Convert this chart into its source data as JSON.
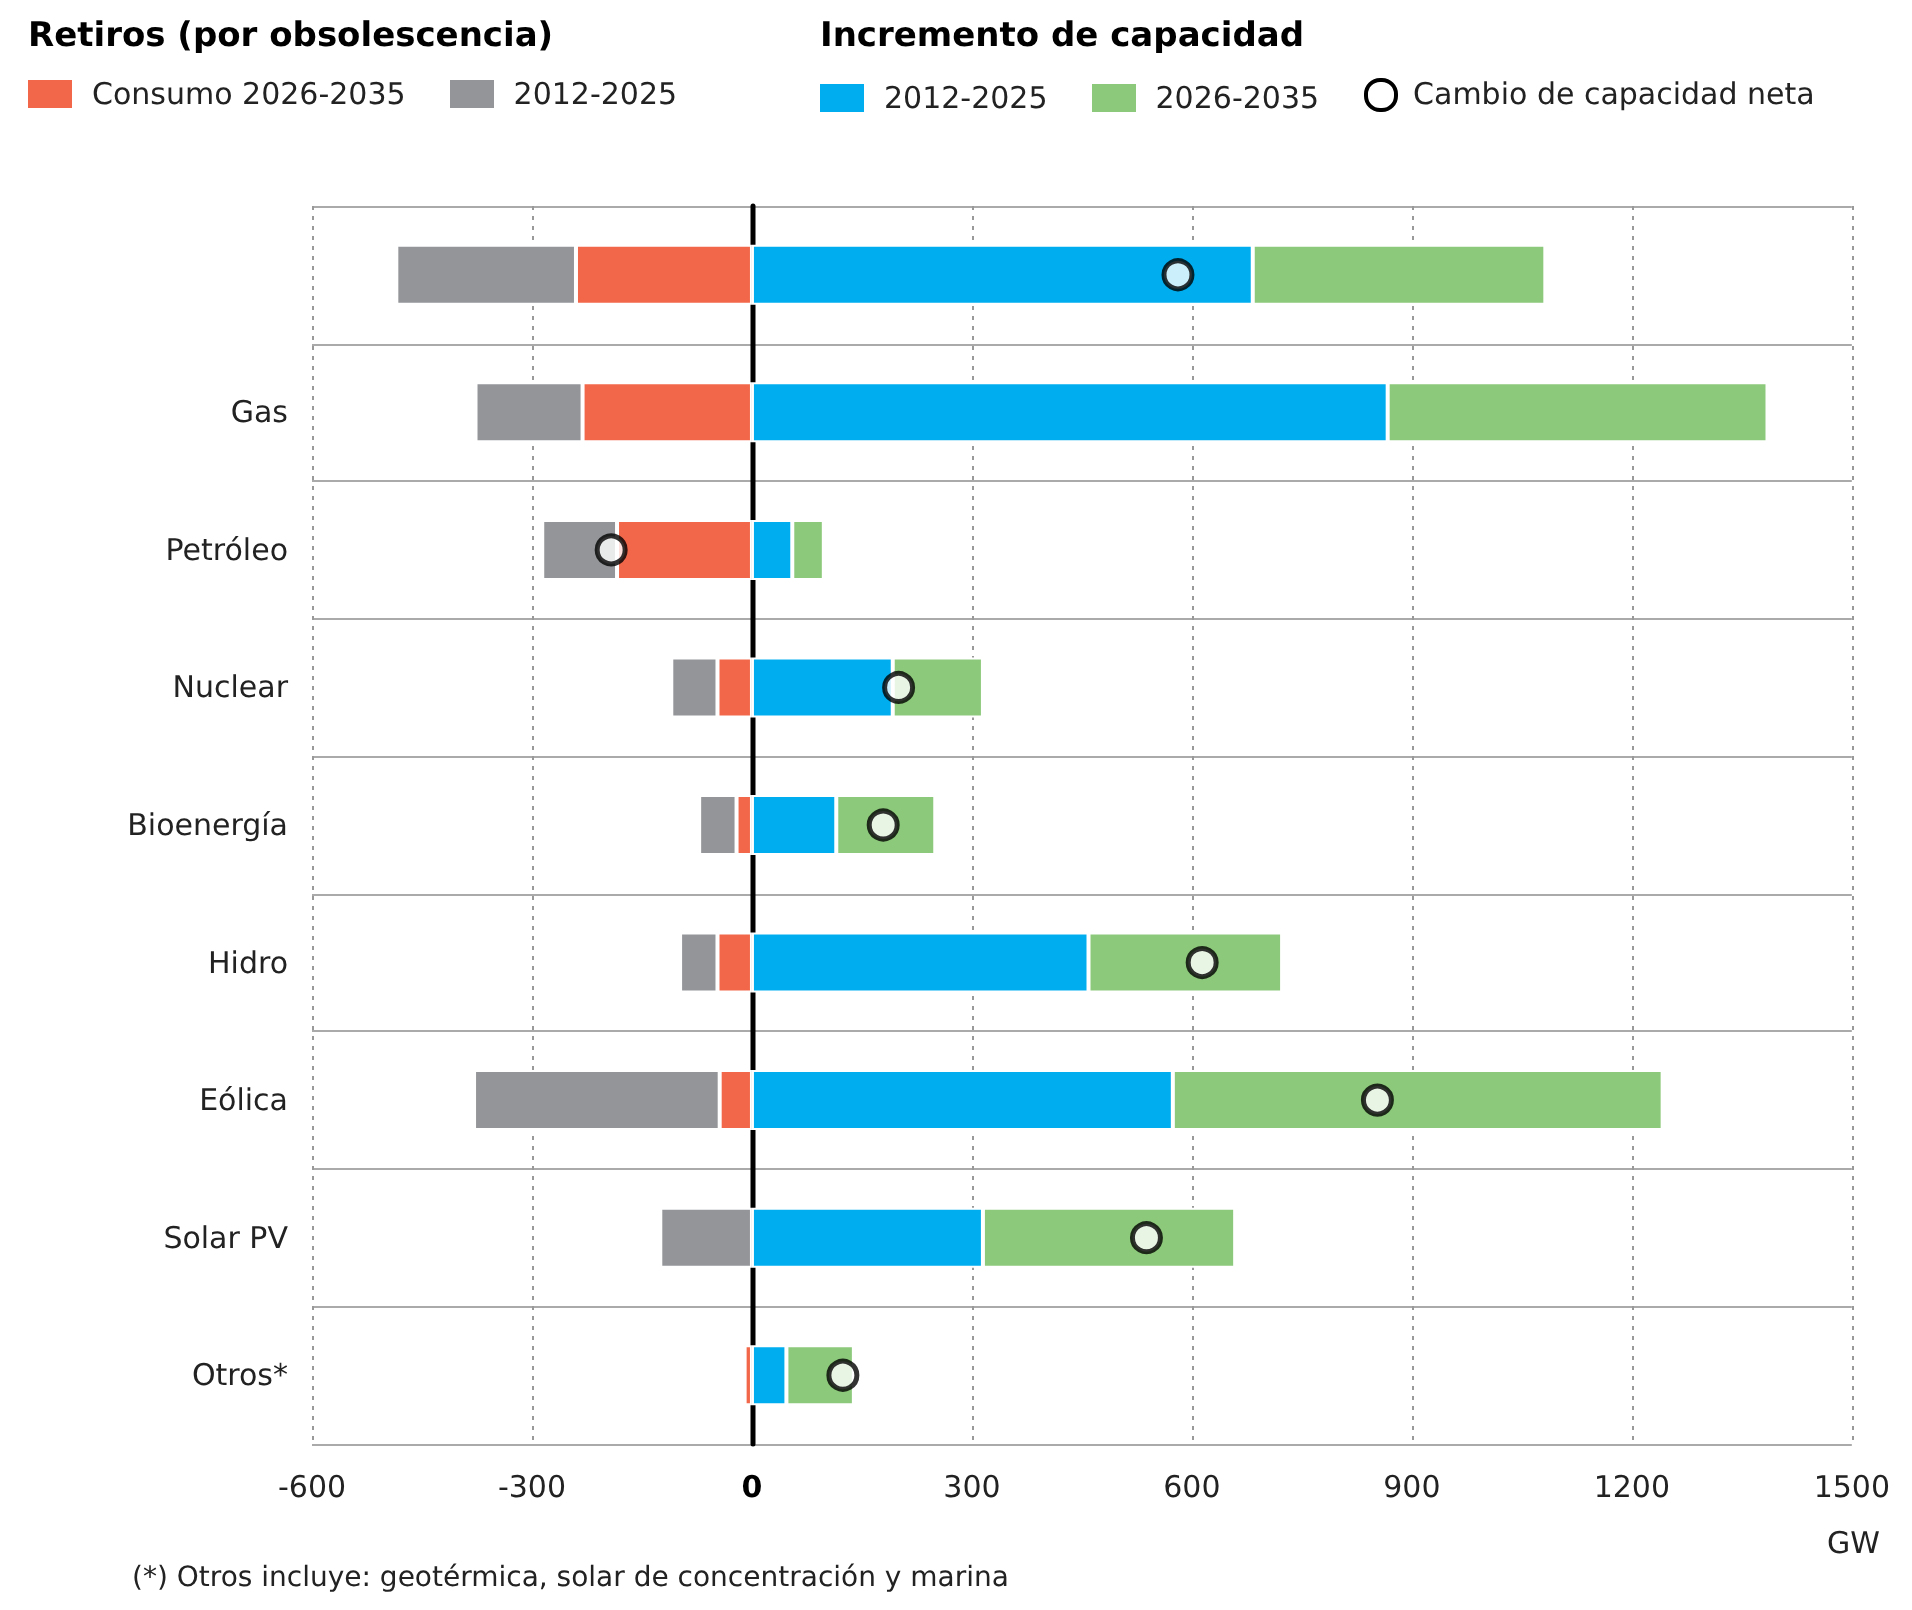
{
  "chart_data": {
    "type": "bar",
    "orientation": "horizontal",
    "stacked": true,
    "categories": [
      null,
      "Gas",
      "Petróleo",
      "Nuclear",
      "Bioenergía",
      "Hidro",
      "Eólica",
      "Solar PV",
      "Otros*"
    ],
    "series": [
      {
        "name": "Consumo 2026-2035",
        "color": "#f2674a",
        "values": [
          -240,
          -231,
          -184,
          -47,
          -21,
          -47,
          -44,
          0,
          -10
        ]
      },
      {
        "name": "2012-2025",
        "color": "#939598",
        "values": [
          -245,
          -146,
          -102,
          -63,
          -51,
          -51,
          -335,
          -125,
          0
        ]
      },
      {
        "name": "2012-2025",
        "color": "#00aeef",
        "values": [
          683,
          867,
          55,
          192,
          115,
          459,
          574,
          315,
          47
        ]
      },
      {
        "name": "2026-2035",
        "color": "#8cc97a",
        "values": [
          399,
          518,
          43,
          123,
          135,
          264,
          668,
          344,
          92
        ]
      },
      {
        "name": "Cambio de capacidad neta",
        "type": "scatter",
        "marker": "circle",
        "color": "#ffffff",
        "values": [
          581,
          null,
          -192,
          200,
          179,
          614,
          853,
          538,
          124
        ]
      }
    ],
    "xlim": [
      -600,
      1500
    ],
    "xticks": [
      -600,
      -300,
      0,
      300,
      600,
      900,
      1200,
      1500
    ],
    "xlabel": "GW",
    "grid": true,
    "legend": "top",
    "annotations": [
      "Retiros (por obsolescencia)",
      "Incremento de capacidad",
      "(*) Otros incluye: geotérmica, solar de concentración y marina"
    ]
  }
}
